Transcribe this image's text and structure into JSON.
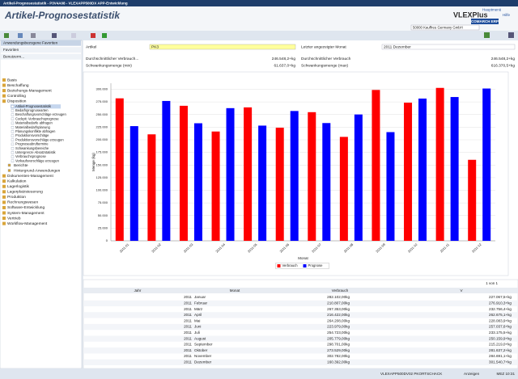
{
  "window_title": "Artikel-Prognosestatistik - P3V4A08 - VLEXAPP500DX APP-Entwicklung",
  "header": {
    "title": "Artikel-Prognosestatistik",
    "links": [
      "Hauptmenü",
      "Hilfe"
    ],
    "logo": "VLEXPlus",
    "badge": "COMARCH ERP",
    "company": "50000 Kauffreu Germany GmbH"
  },
  "sidebar": {
    "sections": [
      "Anwendungsbezogene Favoriten",
      "Favoriten",
      "Benutzerm..."
    ],
    "tree": [
      {
        "label": "Basis"
      },
      {
        "label": "Beschaffung"
      },
      {
        "label": "Beziehungs-Management"
      },
      {
        "label": "Controlling"
      },
      {
        "label": "Disposition",
        "children": [
          "Artikel-Prognosestatistik",
          "Bedarfsprognosearten",
          "Beschaffungsvorschläge erzeugen",
          "Cockpit: Verbrauchsprognose",
          "Materialbedarfe abfragen",
          "Materialbedarfsplanung",
          "Planungskonflikte abfragen",
          "Produktionsvorschläge",
          "Produktionsvorschläge erzeugen",
          "Prognoseabruftermine",
          "Schwankungsbereiche",
          "Untergrenze Absatzstatistik",
          "Verbrauchsprognose",
          "Verkaufsvorschläge erzeugen",
          "Berichte",
          "Hintergrund-Anwendungen"
        ]
      },
      {
        "label": "Dokumenten-Management"
      },
      {
        "label": "Kalkulation"
      },
      {
        "label": "Lagerlogistik"
      },
      {
        "label": "Lagerplatzsteuerung"
      },
      {
        "label": "Produktion"
      },
      {
        "label": "Rechnungswesen"
      },
      {
        "label": "Software-Entwicklung"
      },
      {
        "label": "System-Management"
      },
      {
        "label": "Vertrieb"
      },
      {
        "label": "Workflow-Management"
      }
    ]
  },
  "form": {
    "fields": [
      {
        "label": "Artikel",
        "value": "PK3"
      },
      {
        "label": "Letzter angezeigter Monat",
        "value": "2011 Dezember"
      },
      {
        "label": "Durchschnittlicher Verbrauch...",
        "value": "246.548,2+kg"
      },
      {
        "label": "Durchschnittlicher Verbrauch",
        "value": "246.548,2+kg"
      },
      {
        "label": "Schwankungsmenge (min)",
        "value": "61.637,0+kg"
      },
      {
        "label": "Schwankungsmenge (max)",
        "value": "616.370,5+kg"
      }
    ]
  },
  "chart_data": {
    "type": "bar",
    "x_label": "Monat",
    "y_label": "Menge (kg)",
    "categories": [
      "2011-01",
      "2011-02",
      "2011-03",
      "2011-04",
      "2011-05",
      "2011-06",
      "2011-07",
      "2011-08",
      "2011-09",
      "2011-10",
      "2011-11",
      "2011-12"
    ],
    "series": [
      {
        "name": "Verbrauch",
        "color": "#ff0000",
        "values": [
          282102,
          210807,
          267353,
          216422,
          264208,
          223979,
          254723,
          205779,
          298701,
          273529,
          302782,
          160392
        ]
      },
      {
        "name": "Prognose",
        "color": "#0000ff",
        "values": [
          227067.5,
          276910.3,
          232756.4,
          262675.1,
          228083.9,
          257037.6,
          233175.5,
          250159.9,
          215219.0,
          281637.2,
          284691.1,
          301540.7
        ]
      }
    ],
    "ylim": [
      0,
      312000
    ],
    "yticks": [
      {
        "value": 0,
        "label": "0"
      },
      {
        "value": 25000,
        "label": "25.000"
      },
      {
        "value": 50000,
        "label": "50.000"
      },
      {
        "value": 75000,
        "label": "75.000"
      },
      {
        "value": 100000,
        "label": "100.000"
      },
      {
        "value": 125000,
        "label": "125.000"
      },
      {
        "value": 150000,
        "label": "150.000"
      },
      {
        "value": 175000,
        "label": "175.000"
      },
      {
        "value": 200000,
        "label": "200.000"
      },
      {
        "value": 225000,
        "label": "225.000"
      },
      {
        "value": 250000,
        "label": "250.000"
      },
      {
        "value": 275000,
        "label": "275.000"
      },
      {
        "value": 300000,
        "label": "300.000"
      }
    ],
    "grid": true,
    "legend": "bottom"
  },
  "pager": "1 von 1",
  "table": {
    "columns": [
      "Jahr",
      "Monat",
      "Verbrauch",
      "V"
    ],
    "rows": [
      [
        "2011",
        "Januar",
        "282.102,00kg",
        "227.067,5+kg"
      ],
      [
        "2011",
        "Februar",
        "210.807,00kg",
        "276.910,3+kg"
      ],
      [
        "2011",
        "März",
        "267.353,00kg",
        "232.756,4+kg"
      ],
      [
        "2011",
        "April",
        "216.422,00kg",
        "262.675,1+kg"
      ],
      [
        "2011",
        "Mai",
        "264.208,00kg",
        "228.083,9+kg"
      ],
      [
        "2011",
        "Juni",
        "223.979,00kg",
        "257.037,6+kg"
      ],
      [
        "2011",
        "Juli",
        "254.723,00kg",
        "233.175,5+kg"
      ],
      [
        "2011",
        "August",
        "205.779,00kg",
        "250.159,9+kg"
      ],
      [
        "2011",
        "September",
        "298.701,00kg",
        "215.219,0+kg"
      ],
      [
        "2011",
        "Oktober",
        "273.529,00kg",
        "281.637,2+kg"
      ],
      [
        "2011",
        "November",
        "302.782,00kg",
        "284.691,1+kg"
      ],
      [
        "2011",
        "Dezember",
        "160.392,00kg",
        "301.540,7+kg"
      ]
    ]
  },
  "status": {
    "items": [
      "VLEXAPP500DV02 PKORTSCHACK",
      "Anzeigen",
      "MEZ 10:31"
    ]
  }
}
